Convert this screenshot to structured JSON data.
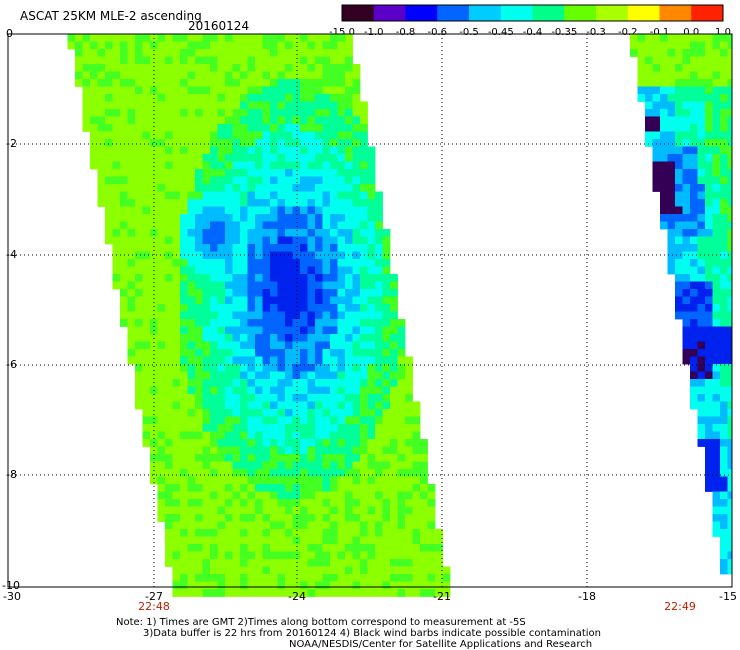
{
  "header": {
    "title": "ASCAT 25KM MLE-2 ascending",
    "date": "20160124"
  },
  "colorbar": {
    "labels": [
      "-15.0",
      "-1.0",
      "-0.8",
      "-0.6",
      "-0.5",
      "-0.45",
      "-0.4",
      "-0.35",
      "-0.3",
      "-0.2",
      "-0.1",
      "0.0",
      "1.0"
    ],
    "colors": [
      "#330022",
      "#4a0070",
      "#5a00c8",
      "#0000ff",
      "#0066ff",
      "#00ccff",
      "#00ffee",
      "#00ff88",
      "#66ff00",
      "#aaff00",
      "#ffff00",
      "#ff8800",
      "#ff2200"
    ]
  },
  "axes": {
    "y_ticks": [
      "0",
      "-2",
      "-4",
      "-6",
      "-8",
      "-10"
    ],
    "x_ticks": [
      "-30",
      "-27",
      "-24",
      "-21",
      "-18",
      "-15"
    ],
    "grid": true
  },
  "swath_times": [
    "22:48",
    "22:49"
  ],
  "field_colors": {
    "background_swath": "#8cff00",
    "green": "#44ff22",
    "mint": "#00ff99",
    "cyan": "#00ffee",
    "skyblue": "#00bbff",
    "blue": "#0066ff",
    "deepblue": "#0022ee",
    "purple": "#330055"
  },
  "notes": {
    "line1": "Note: 1) Times are GMT 2)Times along bottom correspond to measurement at -5S",
    "line2": "3)Data buffer is 22 hrs from 20160124 4) Black wind barbs indicate possible contamination",
    "line3": "NOAA/NESDIS/Center for Satellite Applications and Research"
  }
}
